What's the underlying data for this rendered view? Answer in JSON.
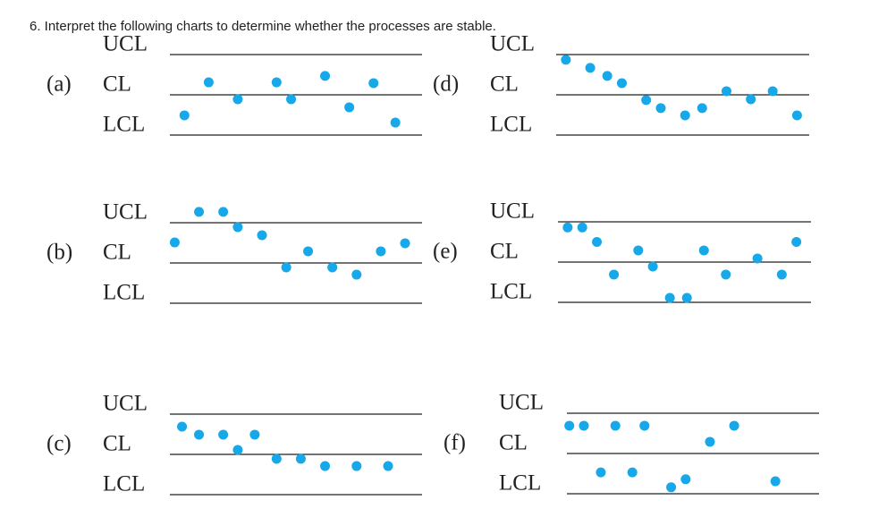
{
  "header": {
    "title": "6. Interpret the following charts to determine whether the processes are stable."
  },
  "chart_data": [
    {
      "type": "scatter",
      "label": "(a)",
      "color": "#17a8ea",
      "xlim": [
        0,
        10.4
      ],
      "ylim": [
        -1.5,
        1.5
      ],
      "yticks": [
        {
          "value": 1,
          "label": "UCL"
        },
        {
          "value": 0,
          "label": "CL"
        },
        {
          "value": -1,
          "label": "LCL"
        }
      ],
      "x": [
        0.6,
        1.6,
        2.8,
        4.4,
        5.0,
        6.4,
        7.4,
        8.4,
        9.3
      ],
      "values": [
        -0.51,
        0.31,
        -0.11,
        0.31,
        -0.11,
        0.47,
        -0.31,
        0.29,
        -0.69
      ]
    },
    {
      "type": "scatter",
      "label": "(b)",
      "color": "#17a8ea",
      "xlim": [
        0,
        10.4
      ],
      "ylim": [
        -1.5,
        1.5
      ],
      "yticks": [
        {
          "value": 1,
          "label": "UCL"
        },
        {
          "value": 0,
          "label": "CL"
        },
        {
          "value": -1,
          "label": "LCL"
        }
      ],
      "x": [
        0.2,
        1.2,
        2.2,
        2.8,
        3.8,
        4.8,
        5.7,
        6.7,
        7.7,
        8.7,
        9.7
      ],
      "values": [
        0.51,
        1.27,
        1.27,
        0.89,
        0.69,
        -0.11,
        0.29,
        -0.11,
        -0.29,
        0.29,
        0.49
      ]
    },
    {
      "type": "scatter",
      "label": "(c)",
      "color": "#17a8ea",
      "xlim": [
        0,
        10.4
      ],
      "ylim": [
        -1.5,
        1.5
      ],
      "yticks": [
        {
          "value": 1,
          "label": "UCL"
        },
        {
          "value": 0,
          "label": "CL"
        },
        {
          "value": -1,
          "label": "LCL"
        }
      ],
      "x": [
        0.5,
        1.2,
        2.2,
        2.8,
        3.5,
        4.4,
        5.4,
        6.4,
        7.7,
        9.0
      ],
      "values": [
        0.69,
        0.49,
        0.49,
        0.11,
        0.49,
        -0.11,
        -0.11,
        -0.29,
        -0.29,
        -0.29
      ]
    },
    {
      "type": "scatter",
      "label": "(d)",
      "color": "#17a8ea",
      "xlim": [
        0,
        10.4
      ],
      "ylim": [
        -1.5,
        1.5
      ],
      "yticks": [
        {
          "value": 1,
          "label": "UCL"
        },
        {
          "value": 0,
          "label": "CL"
        },
        {
          "value": -1,
          "label": "LCL"
        }
      ],
      "x": [
        0.4,
        1.4,
        2.1,
        2.7,
        3.7,
        4.3,
        5.3,
        6.0,
        7.0,
        8.0,
        8.9,
        9.9
      ],
      "values": [
        0.87,
        0.67,
        0.47,
        0.29,
        -0.13,
        -0.33,
        -0.51,
        -0.33,
        0.09,
        -0.11,
        0.09,
        -0.51
      ]
    },
    {
      "type": "scatter",
      "label": "(e)",
      "color": "#17a8ea",
      "xlim": [
        0,
        10.4
      ],
      "ylim": [
        -1.5,
        1.5
      ],
      "yticks": [
        {
          "value": 1,
          "label": "UCL"
        },
        {
          "value": 0,
          "label": "CL"
        },
        {
          "value": -1,
          "label": "LCL"
        }
      ],
      "x": [
        0.4,
        1.0,
        1.6,
        2.3,
        3.3,
        3.9,
        4.6,
        5.3,
        6.0,
        6.9,
        8.2,
        9.2,
        9.8
      ],
      "values": [
        0.86,
        0.86,
        0.5,
        -0.31,
        0.29,
        -0.11,
        -0.89,
        -0.89,
        0.29,
        -0.31,
        0.09,
        -0.31,
        0.5
      ]
    },
    {
      "type": "scatter",
      "label": "(f)",
      "color": "#17a8ea",
      "xlim": [
        0,
        10.4
      ],
      "ylim": [
        -1.5,
        1.5
      ],
      "yticks": [
        {
          "value": 1,
          "label": "UCL"
        },
        {
          "value": 0,
          "label": "CL"
        },
        {
          "value": -1,
          "label": "LCL"
        }
      ],
      "x": [
        0.1,
        0.7,
        1.4,
        2.0,
        2.7,
        3.2,
        4.3,
        4.9,
        5.9,
        6.9,
        8.6
      ],
      "values": [
        0.69,
        0.69,
        -0.47,
        0.69,
        -0.47,
        0.69,
        -0.84,
        -0.64,
        0.29,
        0.69,
        -0.69
      ]
    }
  ]
}
